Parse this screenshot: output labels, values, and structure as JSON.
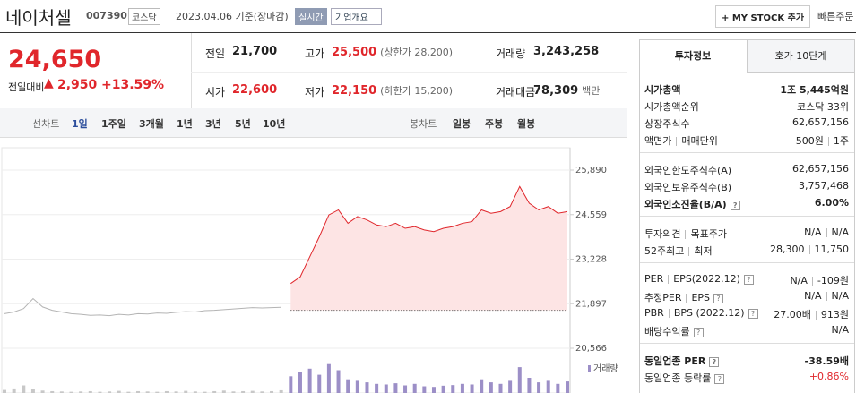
{
  "header": {
    "name": "네이처셀",
    "code": "007390",
    "market": "코스닥",
    "date": "2023.04.06 기준(장마감)",
    "realtime": "실시간",
    "company": "기업개요",
    "my_stock": "+ MY STOCK 추가",
    "quick_order": "빠른주문"
  },
  "price": {
    "current": "24,650",
    "change_label": "전일대비",
    "change_arrow": "▲",
    "change": "2,950",
    "rate": "+13.59%"
  },
  "summary": {
    "rows": [
      [
        {
          "label": "전일",
          "value": "21,700"
        },
        {
          "label": "고가",
          "value": "25,500",
          "note": "(상한가 28,200)",
          "color": "#e0262b"
        },
        {
          "label": "거래량",
          "value": "3,243,258"
        }
      ],
      [
        {
          "label": "시가",
          "value": "22,600",
          "color": "#e0262b"
        },
        {
          "label": "저가",
          "value": "22,150",
          "note": "(하한가 15,200)",
          "color": "#e0262b"
        },
        {
          "label": "거래대금",
          "value": "78,309",
          "note": "백만"
        }
      ]
    ]
  },
  "tabs": {
    "line_label": "선차트",
    "line": [
      "1일",
      "1주일",
      "3개월",
      "1년",
      "3년",
      "5년",
      "10년"
    ],
    "candle_label": "봉차트",
    "candle": [
      "일봉",
      "주봉",
      "월봉"
    ]
  },
  "chart_data": [
    {
      "type": "line",
      "categories": [
        null,
        null,
        null,
        null,
        null,
        null,
        null,
        null,
        null,
        null,
        null,
        null,
        null,
        null,
        null,
        null,
        null,
        null,
        null,
        null,
        null,
        null,
        null,
        null,
        null,
        null,
        null,
        null,
        null,
        null,
        null,
        null,
        null,
        null,
        null,
        null,
        null,
        null,
        null,
        null,
        null,
        null,
        null,
        null,
        null,
        null,
        null,
        null,
        null,
        null,
        null,
        null,
        null,
        null,
        null,
        null,
        null,
        null,
        null,
        null
      ],
      "ylim": [
        20566,
        25890
      ],
      "yticks": [
        {
          "value": 20566,
          "label": "20,566"
        },
        {
          "value": 21897,
          "label": "21,897"
        },
        {
          "value": 23228,
          "label": "23,228"
        },
        {
          "value": 24559,
          "label": "24,559"
        },
        {
          "value": 25890,
          "label": "25,890"
        }
      ],
      "reference_line": 21700,
      "series": [
        {
          "color": "#b4b4b4",
          "values": [
            21600,
            21650,
            21750,
            22050,
            21800,
            21700,
            21650,
            21600,
            21580,
            21550,
            21560,
            21540,
            21580,
            21560,
            21600,
            21590,
            21620,
            21610,
            21640,
            21660,
            21650,
            21690,
            21700,
            21720,
            21740,
            21760,
            21780,
            21770,
            21780,
            21790,
            null,
            null,
            null,
            null,
            null,
            null,
            null,
            null,
            null,
            null,
            null,
            null,
            null,
            null,
            null,
            null,
            null,
            null,
            null,
            null,
            null,
            null,
            null,
            null,
            null,
            null,
            null,
            null,
            null,
            null
          ]
        },
        {
          "color": "#e0262b",
          "fill": "#fde4e4",
          "values": [
            null,
            null,
            null,
            null,
            null,
            null,
            null,
            null,
            null,
            null,
            null,
            null,
            null,
            null,
            null,
            null,
            null,
            null,
            null,
            null,
            null,
            null,
            null,
            null,
            null,
            null,
            null,
            null,
            null,
            null,
            22500,
            22700,
            23300,
            23900,
            24550,
            24700,
            24300,
            24500,
            24400,
            24250,
            24200,
            24300,
            24150,
            24200,
            24100,
            24050,
            24150,
            24200,
            24300,
            24350,
            24700,
            24600,
            24650,
            24800,
            25400,
            24900,
            24700,
            24800,
            24600,
            24650
          ]
        }
      ]
    },
    {
      "type": "bar",
      "title": "거래량",
      "categories": [
        null,
        null,
        null,
        null,
        null,
        null,
        null,
        null,
        null,
        null,
        null,
        null,
        null,
        null,
        null,
        null,
        null,
        null,
        null,
        null,
        null,
        null,
        null,
        null,
        null,
        null,
        null,
        null,
        null,
        null,
        null,
        null,
        null,
        null,
        null,
        null,
        null,
        null,
        null,
        null,
        null,
        null,
        null,
        null,
        null,
        null,
        null,
        null,
        null,
        null,
        null,
        null,
        null,
        null,
        null,
        null,
        null,
        null,
        null,
        null
      ],
      "ylim": [
        0,
        100
      ],
      "series": [
        {
          "color": "#c8c8c8",
          "values": [
            10,
            15,
            25,
            12,
            8,
            6,
            5,
            4,
            5,
            6,
            4,
            5,
            7,
            4,
            6,
            5,
            4,
            6,
            5,
            7,
            5,
            4,
            6,
            8,
            5,
            6,
            7,
            5,
            6,
            9,
            null,
            null,
            null,
            null,
            null,
            null,
            null,
            null,
            null,
            null,
            null,
            null,
            null,
            null,
            null,
            null,
            null,
            null,
            null,
            null,
            null,
            null,
            null,
            null,
            null,
            null,
            null,
            null,
            null,
            null
          ]
        },
        {
          "color": "#9c8fc7",
          "values": [
            null,
            null,
            null,
            null,
            null,
            null,
            null,
            null,
            null,
            null,
            null,
            null,
            null,
            null,
            null,
            null,
            null,
            null,
            null,
            null,
            null,
            null,
            null,
            null,
            null,
            null,
            null,
            null,
            null,
            null,
            55,
            70,
            80,
            60,
            95,
            75,
            45,
            40,
            35,
            30,
            28,
            32,
            25,
            30,
            22,
            20,
            24,
            26,
            30,
            28,
            45,
            35,
            30,
            40,
            85,
            50,
            35,
            40,
            30,
            38
          ]
        }
      ]
    }
  ],
  "invest": {
    "tabs": [
      "투자정보",
      "호가 10단계"
    ],
    "groups": [
      [
        {
          "labels": [
            "시가총액"
          ],
          "values": [
            "1조 5,445억원"
          ],
          "bold": true
        },
        {
          "labels": [
            "시가총액순위"
          ],
          "values": [
            "코스닥 33위"
          ]
        },
        {
          "labels": [
            "상장주식수"
          ],
          "values": [
            "62,657,156"
          ]
        },
        {
          "labels": [
            "액면가",
            "매매단위"
          ],
          "values": [
            "500원",
            "1주"
          ]
        }
      ],
      [
        {
          "labels": [
            "외국인한도주식수(A)"
          ],
          "values": [
            "62,657,156"
          ]
        },
        {
          "labels": [
            "외국인보유주식수(B)"
          ],
          "values": [
            "3,757,468"
          ]
        },
        {
          "labels": [
            "외국인소진율(B/A)"
          ],
          "values": [
            "6.00%"
          ],
          "bold": true,
          "help": true
        }
      ],
      [
        {
          "labels": [
            "투자의견",
            "목표주가"
          ],
          "values": [
            "N/A",
            "N/A"
          ]
        },
        {
          "labels": [
            "52주최고",
            "최저"
          ],
          "values": [
            "28,300",
            "11,750"
          ]
        }
      ],
      [
        {
          "labels": [
            "PER",
            "EPS(2022.12)"
          ],
          "values": [
            "N/A",
            "-109원"
          ],
          "help": true
        },
        {
          "labels": [
            "추정PER",
            "EPS"
          ],
          "values": [
            "N/A",
            "N/A"
          ],
          "help": true
        },
        {
          "labels": [
            "PBR",
            "BPS (2022.12)"
          ],
          "values": [
            "27.00배",
            "913원"
          ],
          "help": true
        },
        {
          "labels": [
            "배당수익률"
          ],
          "values": [
            "N/A"
          ],
          "help": true
        }
      ],
      [
        {
          "labels": [
            "동일업종 PER"
          ],
          "values": [
            "-38.59배"
          ],
          "bold": true,
          "help": true
        },
        {
          "labels": [
            "동일업종 등락률"
          ],
          "values": [
            "+0.86%"
          ],
          "help": true,
          "color": "#e0262b"
        }
      ]
    ]
  }
}
